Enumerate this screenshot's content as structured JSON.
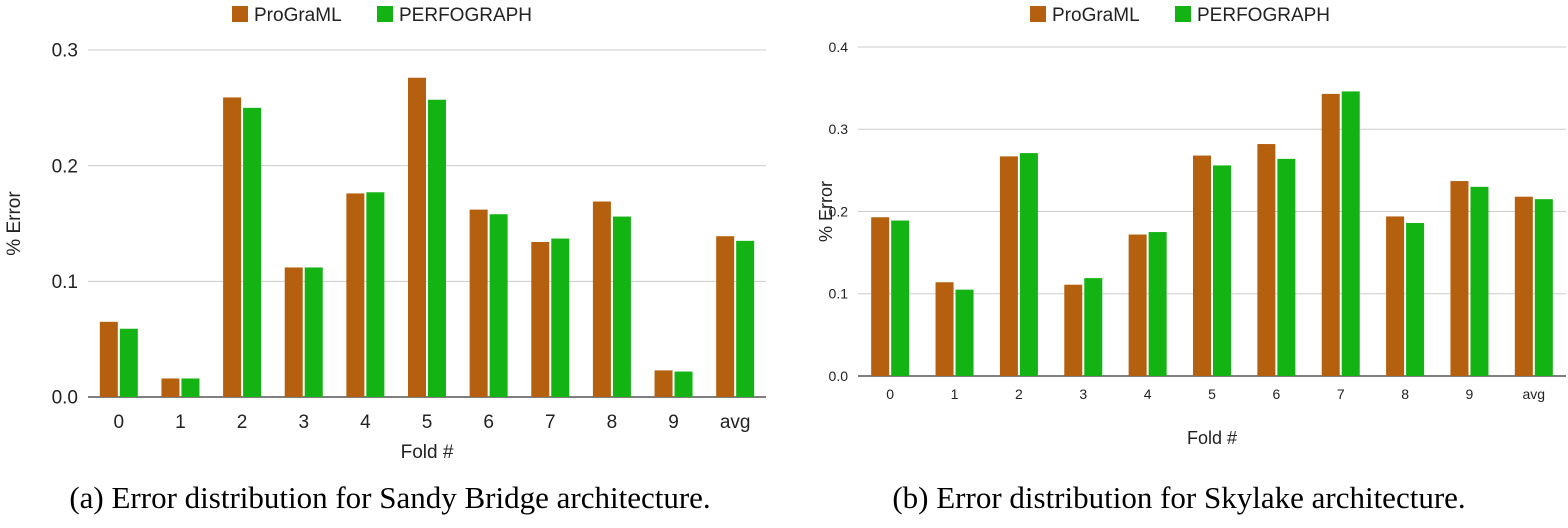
{
  "chart_data": [
    {
      "type": "bar",
      "panel": "a",
      "categories": [
        "0",
        "1",
        "2",
        "3",
        "4",
        "5",
        "6",
        "7",
        "8",
        "9",
        "avg"
      ],
      "series": [
        {
          "name": "ProGraML",
          "color": "#b5600f",
          "values": [
            0.065,
            0.016,
            0.259,
            0.112,
            0.176,
            0.276,
            0.162,
            0.134,
            0.169,
            0.023,
            0.139
          ]
        },
        {
          "name": "PERFOGRAPH",
          "color": "#12b312",
          "values": [
            0.059,
            0.016,
            0.25,
            0.112,
            0.177,
            0.257,
            0.158,
            0.137,
            0.156,
            0.022,
            0.135
          ]
        }
      ],
      "xlabel": "Fold #",
      "ylabel": "% Error",
      "ylim": [
        0,
        0.3
      ],
      "yticks": [
        "0.0",
        "0.1",
        "0.2",
        "0.3"
      ],
      "legend": "top-center",
      "grid": true,
      "caption": "(a) Error distribution for Sandy Bridge architecture."
    },
    {
      "type": "bar",
      "panel": "b",
      "categories": [
        "0",
        "1",
        "2",
        "3",
        "4",
        "5",
        "6",
        "7",
        "8",
        "9",
        "avg"
      ],
      "series": [
        {
          "name": "ProGraML",
          "color": "#b5600f",
          "values": [
            0.193,
            0.114,
            0.267,
            0.111,
            0.172,
            0.268,
            0.282,
            0.343,
            0.194,
            0.237,
            0.218
          ]
        },
        {
          "name": "PERFOGRAPH",
          "color": "#12b312",
          "values": [
            0.189,
            0.105,
            0.271,
            0.119,
            0.175,
            0.256,
            0.264,
            0.346,
            0.186,
            0.23,
            0.215
          ]
        }
      ],
      "xlabel": "Fold #",
      "ylabel": "% Error",
      "ylim": [
        0,
        0.4
      ],
      "yticks": [
        "0.0",
        "0.1",
        "0.2",
        "0.3",
        "0.4"
      ],
      "legend": "top-center",
      "grid": true,
      "caption": "(b) Error distribution for Skylake architecture."
    }
  ]
}
